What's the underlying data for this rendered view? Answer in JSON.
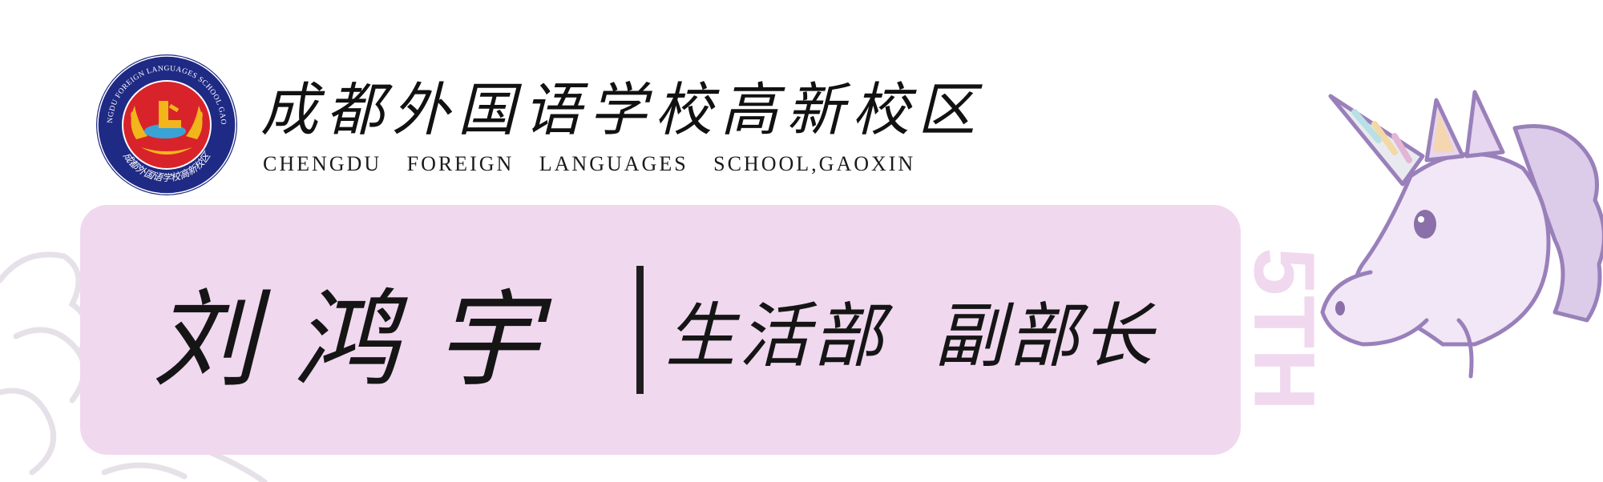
{
  "header": {
    "school_name_cn": "成都外国语学校高新校区",
    "school_name_en": "CHENGDU FOREIGN LANGUAGES SCHOOL,GAOXIN"
  },
  "logo": {
    "ring_text_en": "CHENGDU FOREIGN LANGUAGES SCHOOL GAOXIN",
    "ring_text_cn": "成都外国语学校高新校区",
    "icon": "school-emblem-icon"
  },
  "card": {
    "person_name": "刘鸿宇",
    "department": "生活部",
    "role": "副部长"
  },
  "side_mark": {
    "text": "5TH"
  },
  "colors": {
    "card_bg": "#f0d8ef",
    "seal_blue": "#1f2a85",
    "seal_red": "#d9232a",
    "seal_gold": "#f2b51c",
    "unicorn_line": "#9a80ba",
    "unicorn_fill": "#e6d6ef"
  }
}
